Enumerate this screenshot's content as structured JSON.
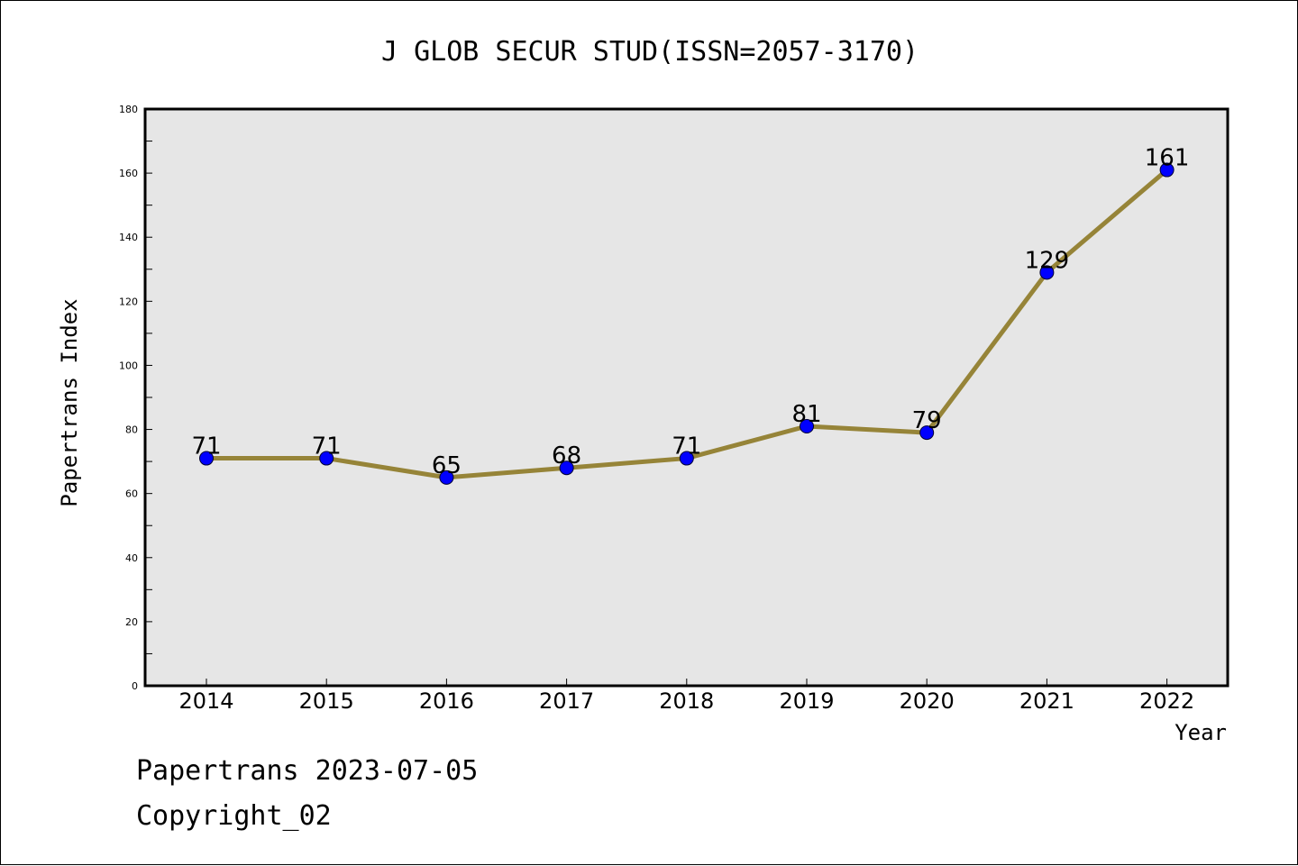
{
  "chart_data": {
    "type": "line",
    "title": "J GLOB SECUR STUD(ISSN=2057-3170)",
    "xlabel": "Year",
    "ylabel": "Papertrans Index",
    "categories": [
      "2014",
      "2015",
      "2016",
      "2017",
      "2018",
      "2019",
      "2020",
      "2021",
      "2022"
    ],
    "values": [
      71,
      71,
      65,
      68,
      71,
      81,
      79,
      129,
      161
    ],
    "ylim": [
      0,
      180
    ],
    "yticks": [
      "0",
      "20",
      "40",
      "60",
      "80",
      "100",
      "120",
      "140",
      "160",
      "180"
    ],
    "grid": false,
    "colors": {
      "line": "#968438",
      "marker": "#0000ff",
      "plot_bg": "#e6e6e6"
    }
  },
  "footer": {
    "line1": "Papertrans 2023-07-05",
    "line2": "Copyright_02"
  }
}
